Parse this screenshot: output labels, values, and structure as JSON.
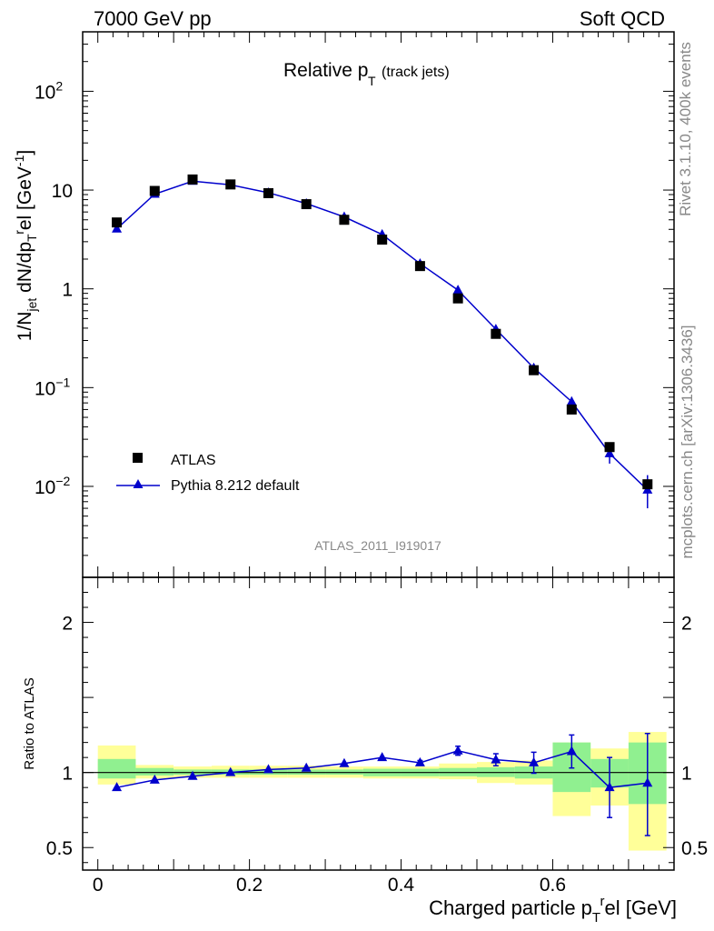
{
  "header": {
    "energy": "7000 GeV pp",
    "category": "Soft QCD"
  },
  "side": {
    "rivet": "Rivet 3.1.10,  400k events",
    "mcplots": "mcplots.cern.ch [arXiv:1306.3436]"
  },
  "analysis_id": "ATLAS_2011_I919017",
  "colors": {
    "data": "#000000",
    "mc": "#0000cc",
    "band_inner": "#90f090",
    "band_outer": "#ffff99"
  },
  "chart_data": [
    {
      "type": "scatter",
      "title": "Relative p_T (track jets)",
      "title_main": "Relative p",
      "title_sub": "T",
      "title_note": "(track jets)",
      "ylabel": "1/N_jet dN/dp_T^rel [GeV^-1]",
      "xlabel": "Charged particle p_T^rel [GeV]",
      "yscale": "log",
      "ylim": [
        0.0012,
        400
      ],
      "xlim": [
        -0.02,
        0.76
      ],
      "y_ticks": [
        {
          "value": 0.01,
          "base": "10",
          "exp": "−2"
        },
        {
          "value": 0.1,
          "base": "10",
          "exp": "−1"
        },
        {
          "value": 1,
          "base": "1",
          "exp": ""
        },
        {
          "value": 10,
          "base": "10",
          "exp": ""
        },
        {
          "value": 100,
          "base": "10",
          "exp": "2"
        }
      ],
      "legend": [
        {
          "name": "ATLAS",
          "marker": "square"
        },
        {
          "name": "Pythia 8.212 default",
          "marker": "triangle-line"
        }
      ],
      "x": [
        0.025,
        0.075,
        0.125,
        0.175,
        0.225,
        0.275,
        0.325,
        0.375,
        0.425,
        0.475,
        0.525,
        0.575,
        0.625,
        0.675,
        0.725
      ],
      "series": [
        {
          "name": "ATLAS",
          "values": [
            4.7,
            9.8,
            12.8,
            11.4,
            9.3,
            7.2,
            5.0,
            3.15,
            1.7,
            0.8,
            0.35,
            0.15,
            0.06,
            0.025,
            0.0105
          ]
        },
        {
          "name": "Pythia 8.212 default",
          "values": [
            4.05,
            9.1,
            12.3,
            11.3,
            9.4,
            7.3,
            5.35,
            3.55,
            1.8,
            0.97,
            0.39,
            0.158,
            0.072,
            0.0215,
            0.0092
          ],
          "err_up": [
            0,
            0,
            0,
            0,
            0,
            0,
            0,
            0,
            0,
            0,
            0,
            0,
            0.0085,
            0.0045,
            0.0038
          ],
          "err_down": [
            0,
            0,
            0,
            0,
            0,
            0,
            0,
            0,
            0,
            0,
            0,
            0,
            0.008,
            0.0045,
            0.0032
          ]
        }
      ]
    },
    {
      "type": "line",
      "ylabel": "Ratio to ATLAS",
      "xlabel": "Charged particle p_T^rel [GeV]",
      "ylim": [
        0.35,
        2.3
      ],
      "xlim": [
        -0.02,
        0.76
      ],
      "y_ticks": [
        {
          "value": 0.5,
          "label": "0.5"
        },
        {
          "value": 1,
          "label": "1"
        },
        {
          "value": 2,
          "label": "2"
        }
      ],
      "x_ticks": [
        {
          "value": 0,
          "label": "0"
        },
        {
          "value": 0.2,
          "label": "0.2"
        },
        {
          "value": 0.4,
          "label": "0.4"
        },
        {
          "value": 0.6,
          "label": "0.6"
        }
      ],
      "x": [
        0.025,
        0.075,
        0.125,
        0.175,
        0.225,
        0.275,
        0.325,
        0.375,
        0.425,
        0.475,
        0.525,
        0.575,
        0.625,
        0.675,
        0.725
      ],
      "ratio_values": [
        0.9,
        0.95,
        0.975,
        1.0,
        1.02,
        1.03,
        1.06,
        1.1,
        1.065,
        1.145,
        1.085,
        1.065,
        1.14,
        0.9,
        0.93
      ],
      "ratio_err_up": [
        0,
        0,
        0,
        0,
        0,
        0,
        0,
        0,
        0.015,
        0.03,
        0.04,
        0.07,
        0.11,
        0.2,
        0.33
      ],
      "ratio_err_down": [
        0,
        0,
        0,
        0,
        0,
        0,
        0,
        0,
        0.015,
        0.03,
        0.04,
        0.07,
        0.11,
        0.2,
        0.35
      ],
      "band_inner": [
        {
          "x0": 0.0,
          "x1": 0.05,
          "lo": 0.96,
          "hi": 1.09
        },
        {
          "x0": 0.05,
          "x1": 0.1,
          "lo": 0.98,
          "hi": 1.03
        },
        {
          "x0": 0.1,
          "x1": 0.15,
          "lo": 0.985,
          "hi": 1.02
        },
        {
          "x0": 0.15,
          "x1": 0.2,
          "lo": 0.985,
          "hi": 1.02
        },
        {
          "x0": 0.2,
          "x1": 0.25,
          "lo": 0.985,
          "hi": 1.02
        },
        {
          "x0": 0.25,
          "x1": 0.3,
          "lo": 0.985,
          "hi": 1.02
        },
        {
          "x0": 0.3,
          "x1": 0.35,
          "lo": 0.985,
          "hi": 1.02
        },
        {
          "x0": 0.35,
          "x1": 0.4,
          "lo": 0.975,
          "hi": 1.025
        },
        {
          "x0": 0.4,
          "x1": 0.45,
          "lo": 0.975,
          "hi": 1.025
        },
        {
          "x0": 0.45,
          "x1": 0.5,
          "lo": 0.975,
          "hi": 1.03
        },
        {
          "x0": 0.5,
          "x1": 0.55,
          "lo": 0.97,
          "hi": 1.035
        },
        {
          "x0": 0.55,
          "x1": 0.6,
          "lo": 0.96,
          "hi": 1.04
        },
        {
          "x0": 0.6,
          "x1": 0.65,
          "lo": 0.87,
          "hi": 1.2
        },
        {
          "x0": 0.65,
          "x1": 0.7,
          "lo": 0.9,
          "hi": 1.09
        },
        {
          "x0": 0.7,
          "x1": 0.75,
          "lo": 0.79,
          "hi": 1.2
        }
      ],
      "band_outer": [
        {
          "x0": 0.0,
          "x1": 0.05,
          "lo": 0.92,
          "hi": 1.18
        },
        {
          "x0": 0.05,
          "x1": 0.1,
          "lo": 0.96,
          "hi": 1.05
        },
        {
          "x0": 0.1,
          "x1": 0.15,
          "lo": 0.965,
          "hi": 1.04
        },
        {
          "x0": 0.15,
          "x1": 0.2,
          "lo": 0.965,
          "hi": 1.045
        },
        {
          "x0": 0.2,
          "x1": 0.25,
          "lo": 0.965,
          "hi": 1.045
        },
        {
          "x0": 0.25,
          "x1": 0.3,
          "lo": 0.965,
          "hi": 1.045
        },
        {
          "x0": 0.3,
          "x1": 0.35,
          "lo": 0.965,
          "hi": 1.04
        },
        {
          "x0": 0.35,
          "x1": 0.4,
          "lo": 0.96,
          "hi": 1.04
        },
        {
          "x0": 0.4,
          "x1": 0.45,
          "lo": 0.96,
          "hi": 1.04
        },
        {
          "x0": 0.45,
          "x1": 0.5,
          "lo": 0.955,
          "hi": 1.06
        },
        {
          "x0": 0.5,
          "x1": 0.55,
          "lo": 0.93,
          "hi": 1.07
        },
        {
          "x0": 0.55,
          "x1": 0.6,
          "lo": 0.92,
          "hi": 1.08
        },
        {
          "x0": 0.6,
          "x1": 0.65,
          "lo": 0.71,
          "hi": 1.2
        },
        {
          "x0": 0.65,
          "x1": 0.7,
          "lo": 0.78,
          "hi": 1.16
        },
        {
          "x0": 0.7,
          "x1": 0.75,
          "lo": 0.48,
          "hi": 1.27
        }
      ]
    }
  ]
}
